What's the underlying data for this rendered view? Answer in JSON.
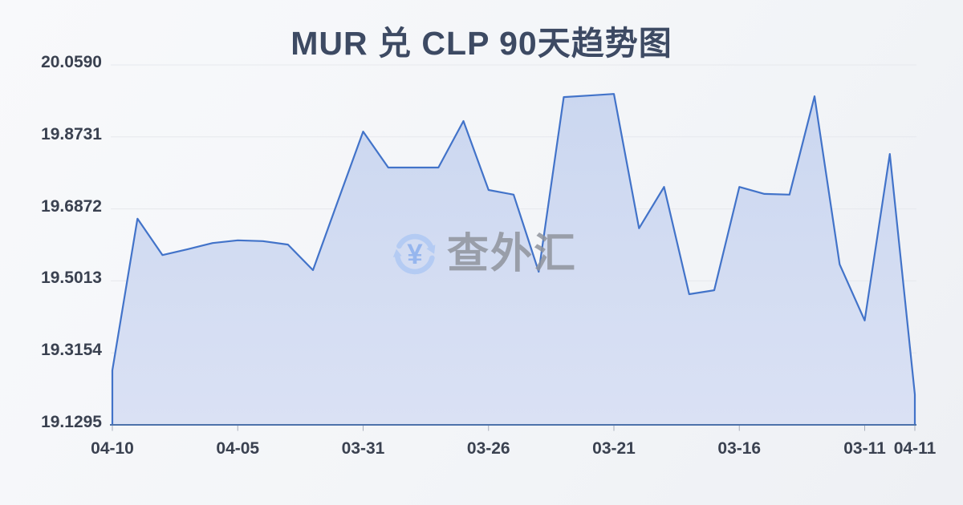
{
  "page": {
    "title": "MUR 兑 CLP 90天趋势图"
  },
  "watermark": {
    "text": "查外汇",
    "symbol": "¥",
    "icon": "currency-exchange-icon"
  },
  "chart_data": {
    "type": "area",
    "title": "MUR 兑 CLP 90天趋势图",
    "series_name": "MUR/CLP",
    "values": [
      19.27,
      19.662,
      19.568,
      19.583,
      19.599,
      19.606,
      19.604,
      19.595,
      19.529,
      19.709,
      19.887,
      19.794,
      19.794,
      19.794,
      19.914,
      19.736,
      19.724,
      19.525,
      19.976,
      19.98,
      19.984,
      19.637,
      19.744,
      19.467,
      19.477,
      19.744,
      19.726,
      19.724,
      19.978,
      19.544,
      19.399,
      19.829,
      19.208
    ],
    "x_tick_labels": [
      "04-10",
      "04-05",
      "03-31",
      "03-26",
      "03-21",
      "03-16",
      "03-11",
      "04-11"
    ],
    "x_tick_indices": [
      0,
      5,
      10,
      15,
      20,
      25,
      30,
      32
    ],
    "y_tick_labels": [
      "20.0590",
      "19.8731",
      "19.6872",
      "19.5013",
      "19.3154",
      "19.1295"
    ],
    "ylim": [
      19.1295,
      20.059
    ],
    "grid": true,
    "legend": "none",
    "colors": {
      "line": "#4273c9",
      "area_top": "#cbd7f0",
      "area_bottom": "#dae1f4",
      "axis_line": "#4d72ab",
      "gridline": "#e6e8ed",
      "tick": "#a6adba",
      "title_text": "#3d4a63",
      "axis_text": "#3a4150",
      "watermark_blue": "#afc9f4",
      "watermark_yen": "#8cb0ee",
      "watermark_gray": "#90949d",
      "background": "#f4f5f8"
    }
  }
}
